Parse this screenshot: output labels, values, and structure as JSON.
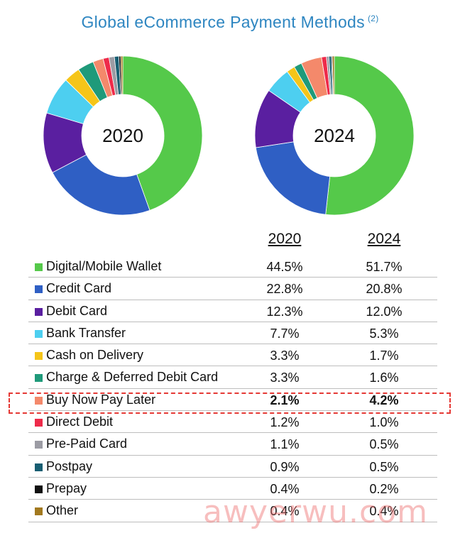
{
  "title": "Global eCommerce Payment Methods",
  "title_note": "(2)",
  "watermark": "awyerwu.com",
  "chart_data": [
    {
      "type": "pie",
      "center_label": "2020",
      "categories": [
        "Digital/Mobile Wallet",
        "Credit Card",
        "Debit Card",
        "Bank Transfer",
        "Cash on Delivery",
        "Charge & Deferred Debit Card",
        "Buy Now Pay Later",
        "Direct Debit",
        "Pre-Paid Card",
        "Postpay",
        "Prepay",
        "Other"
      ],
      "values": [
        44.5,
        22.8,
        12.3,
        7.7,
        3.3,
        3.3,
        2.1,
        1.2,
        1.1,
        0.9,
        0.4,
        0.4
      ]
    },
    {
      "type": "pie",
      "center_label": "2024",
      "categories": [
        "Digital/Mobile Wallet",
        "Credit Card",
        "Debit Card",
        "Bank Transfer",
        "Cash on Delivery",
        "Charge & Deferred Debit Card",
        "Buy Now Pay Later",
        "Direct Debit",
        "Pre-Paid Card",
        "Postpay",
        "Prepay",
        "Other"
      ],
      "values": [
        51.7,
        20.8,
        12.0,
        5.3,
        1.7,
        1.6,
        4.2,
        1.0,
        0.5,
        0.5,
        0.2,
        0.4
      ]
    },
    {
      "type": "table",
      "columns": [
        "2020",
        "2024"
      ],
      "rows": [
        {
          "label": "Digital/Mobile Wallet",
          "color": "#55c94a",
          "v2020": "44.5%",
          "v2024": "51.7%",
          "bold": false
        },
        {
          "label": "Credit Card",
          "color": "#2f5fc4",
          "v2020": "22.8%",
          "v2024": "20.8%",
          "bold": false
        },
        {
          "label": "Debit Card",
          "color": "#5a1fa0",
          "v2020": "12.3%",
          "v2024": "12.0%",
          "bold": false
        },
        {
          "label": "Bank Transfer",
          "color": "#4dcff0",
          "v2020": "7.7%",
          "v2024": "5.3%",
          "bold": false
        },
        {
          "label": "Cash on Delivery",
          "color": "#f5c519",
          "v2020": "3.3%",
          "v2024": "1.7%",
          "bold": false
        },
        {
          "label": "Charge & Deferred Debit Card",
          "color": "#1f9a7a",
          "v2020": "3.3%",
          "v2024": "1.6%",
          "bold": false
        },
        {
          "label": "Buy Now Pay Later",
          "color": "#f4896b",
          "v2020": "2.1%",
          "v2024": "4.2%",
          "bold": true
        },
        {
          "label": "Direct Debit",
          "color": "#ee2b4a",
          "v2020": "1.2%",
          "v2024": "1.0%",
          "bold": false
        },
        {
          "label": "Pre-Paid Card",
          "color": "#9c9ca4",
          "v2020": "1.1%",
          "v2024": "0.5%",
          "bold": false
        },
        {
          "label": "Postpay",
          "color": "#175e72",
          "v2020": "0.9%",
          "v2024": "0.5%",
          "bold": false
        },
        {
          "label": "Prepay",
          "color": "#111111",
          "v2020": "0.4%",
          "v2024": "0.2%",
          "bold": false
        },
        {
          "label": "Other",
          "color": "#a2791f",
          "v2020": "0.4%",
          "v2024": "0.4%",
          "bold": false
        }
      ]
    }
  ]
}
